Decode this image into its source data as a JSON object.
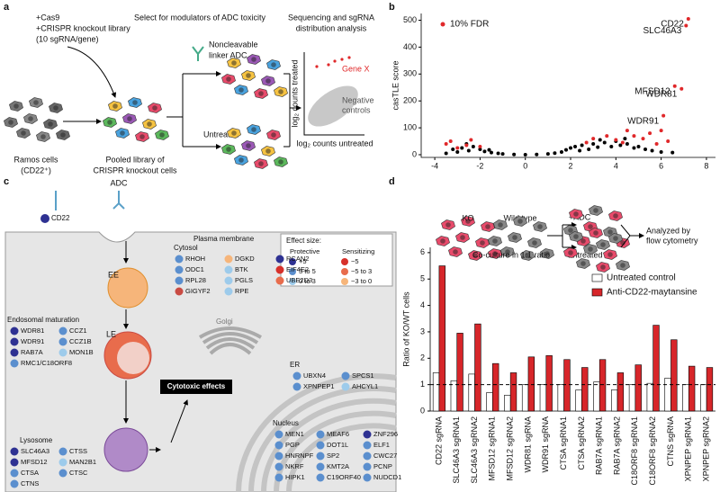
{
  "panel_a": {
    "letter": "a",
    "cas9": "+Cas9",
    "library": "+CRISPR knockout library",
    "sgrna_per_gene": "(10 sgRNA/gene)",
    "select_title": "Select for modulators of ADC toxicity",
    "seq_title": [
      "Sequencing and sgRNA",
      "distribution analysis"
    ],
    "adc_label": [
      "Noncleavable",
      "linker ADC"
    ],
    "untreated": "Untreated",
    "ramos": [
      "Ramos cells",
      "(CD22⁺)"
    ],
    "pooled": [
      "Pooled library of",
      "CRISPR knockout cells"
    ],
    "gene_x": "Gene X",
    "negative": [
      "Negative",
      "controls"
    ],
    "y_label": "log₂ counts treated",
    "x_label": "log₂ counts untreated"
  },
  "chart_data": [
    {
      "panel_letter": "b",
      "type": "scatter",
      "y_label": "casTLE score",
      "xlim": [
        -4.6,
        8.4
      ],
      "ylim": [
        -10,
        525
      ],
      "xticks": [
        -4,
        -2,
        0,
        2,
        4,
        6,
        8
      ],
      "yticks": [
        0,
        100,
        200,
        300,
        400,
        500
      ],
      "legend": "top-left",
      "series": [
        {
          "color": "#000000",
          "x": [
            -3.5,
            -3,
            -2.8,
            -2.5,
            -2.3,
            -2,
            -1.8,
            -1.5,
            -1.2,
            -1,
            -0.5,
            0,
            0.5,
            1,
            1.3,
            1.6,
            1.8,
            2,
            2.2,
            2.5,
            2.8,
            3,
            3.2,
            3.5,
            3.8,
            4,
            4.2,
            4.5,
            4.8,
            5,
            5.3,
            5.6,
            6,
            6.5,
            -2.6,
            -3.2,
            3.3,
            4.4,
            2.4,
            -1.6
          ],
          "y": [
            5,
            10,
            25,
            15,
            30,
            20,
            12,
            8,
            5,
            3,
            1,
            0,
            1,
            3,
            6,
            10,
            18,
            25,
            30,
            35,
            20,
            40,
            28,
            45,
            30,
            50,
            35,
            40,
            25,
            30,
            20,
            15,
            10,
            8,
            40,
            20,
            55,
            60,
            15,
            18
          ]
        },
        {
          "name": "10% FDR",
          "color": "#e0282a",
          "x": [
            7.2,
            7.1,
            6.6,
            6.9,
            6.1,
            -3.3,
            -3.5,
            -2.6,
            -2.4,
            -2,
            3,
            3.6,
            4,
            4.5,
            4.8,
            5.2,
            5.5,
            6,
            6.3,
            4.3,
            5.8,
            2.7,
            -3
          ],
          "y": [
            505,
            480,
            255,
            245,
            145,
            50,
            40,
            35,
            55,
            30,
            60,
            70,
            55,
            90,
            70,
            60,
            80,
            90,
            50,
            45,
            40,
            45,
            25
          ],
          "point_labels": [
            "CD22",
            "SLC46A3",
            "MFSD12",
            "WDR81",
            "WDR91",
            null,
            null,
            null,
            null,
            null,
            null,
            null,
            null,
            null,
            null,
            null,
            null,
            null,
            null,
            null,
            null,
            null,
            null
          ]
        }
      ]
    },
    {
      "panel_letter": "d",
      "type": "bar",
      "y_label": "Ratio of KO/WT cells",
      "categories": [
        "CD22 sgRNA",
        "SLC46A3 sgRNA1",
        "SLC46A3 sgRNA2",
        "MFSD12 sgRNA1",
        "MFSD12 sgRNA2",
        "WDR81 sgRNA",
        "WDR91 sgRNA",
        "CTSA sgRNA1",
        "CTSA sgRNA2",
        "RAB7A sgRNA1",
        "RAB7A sgRNA2",
        "C18ORF8 sgRNA1",
        "C18ORF8 sgRNA2",
        "CTNS sgRNA",
        "XPNPEP sgRNA1",
        "XPNPEP sgRNA2"
      ],
      "series": [
        {
          "name": "Untreated control",
          "color": "#ffffff",
          "values": [
            1.45,
            1.15,
            1.4,
            0.7,
            0.6,
            1.0,
            1.0,
            1.0,
            0.8,
            1.1,
            0.8,
            1.0,
            1.05,
            1.25,
            1.0,
            1.0
          ]
        },
        {
          "name": "Anti-CD22-maytansine",
          "color": "#d7262a",
          "values": [
            5.5,
            2.95,
            3.3,
            1.8,
            1.45,
            2.05,
            2.1,
            1.95,
            1.65,
            1.95,
            1.45,
            1.75,
            3.25,
            2.7,
            1.7,
            1.65
          ]
        }
      ],
      "ylim": [
        0,
        6.2
      ],
      "yticks": [
        0,
        1,
        2,
        3,
        4,
        5,
        6
      ],
      "reference_line": 1,
      "legend": "top-right"
    }
  ],
  "panel_d_inset": {
    "ko": "KO",
    "wild_type": "Wild type",
    "adc": "+ADC",
    "untreated": "Untreated",
    "coculture": "Co-culture in 1:1 ratio",
    "analyzed": [
      "Analyzed by",
      "flow cytometry"
    ]
  },
  "panel_c": {
    "letter": "c",
    "adc": "ADC",
    "cd22": "CD22",
    "plasma_membrane": "Plasma membrane",
    "ee": "EE",
    "le": "LE",
    "golgi": "Golgi",
    "cytotoxic": "Cytotoxic effects",
    "legend": {
      "title": "Effect size:",
      "protective": {
        "title": "Protective",
        "items": [
          {
            "label": "+5",
            "color": "#2e3192"
          },
          {
            "label": "3 to 5",
            "color": "#5b8fce"
          },
          {
            "label": "0 to 3",
            "color": "#9dcbeb"
          }
        ]
      },
      "sensitizing": {
        "title": "Sensitizing",
        "items": [
          {
            "label": "−5",
            "color": "#d7302a"
          },
          {
            "label": "−5 to 3",
            "color": "#e86c4c"
          },
          {
            "label": "−3 to 0",
            "color": "#f6b57a"
          }
        ]
      }
    },
    "groups": [
      {
        "title": "Cytosol",
        "columns": [
          [
            {
              "name": "RHOH",
              "color": "#5b8fce"
            },
            {
              "name": "ODC1",
              "color": "#5b8fce"
            },
            {
              "name": "RPL28",
              "color": "#5b8fce"
            },
            {
              "name": "GIGYF2",
              "color": "#c94b43"
            }
          ],
          [
            {
              "name": "DGKD",
              "color": "#f6b57a"
            },
            {
              "name": "BTK",
              "color": "#9dcbeb"
            },
            {
              "name": "PGLS",
              "color": "#9dcbeb"
            },
            {
              "name": "RPE",
              "color": "#9dcbeb"
            }
          ],
          [
            {
              "name": "RCAN2",
              "color": "#2e3192"
            },
            {
              "name": "EIF4E2",
              "color": "#d7302a"
            },
            {
              "name": "UBE2D3",
              "color": "#e86c4c"
            }
          ]
        ]
      },
      {
        "title": "Endosomal maturation",
        "columns": [
          [
            {
              "name": "WDR81",
              "color": "#2e3192"
            },
            {
              "name": "WDR91",
              "color": "#2e3192"
            },
            {
              "name": "RAB7A",
              "color": "#2e3192"
            },
            {
              "name": "RMC1/C18ORF8",
              "color": "#5b8fce"
            }
          ],
          [
            {
              "name": "CCZ1",
              "color": "#5b8fce"
            },
            {
              "name": "CCZ1B",
              "color": "#5b8fce"
            },
            {
              "name": "MON1B",
              "color": "#9dcbeb"
            }
          ]
        ]
      },
      {
        "title": "ER",
        "columns": [
          [
            {
              "name": "UBXN4",
              "color": "#5b8fce"
            },
            {
              "name": "XPNPEP1",
              "color": "#5b8fce"
            }
          ],
          [
            {
              "name": "SPCS1",
              "color": "#5b8fce"
            },
            {
              "name": "AHCYL1",
              "color": "#9dcbeb"
            }
          ]
        ]
      },
      {
        "title": "Nucleus",
        "columns": [
          [
            {
              "name": "MEN1",
              "color": "#5b8fce"
            },
            {
              "name": "PGP",
              "color": "#5b8fce"
            },
            {
              "name": "HNRNPF",
              "color": "#5b8fce"
            },
            {
              "name": "NKRF",
              "color": "#5b8fce"
            },
            {
              "name": "HIPK1",
              "color": "#5b8fce"
            }
          ],
          [
            {
              "name": "MEAF6",
              "color": "#5b8fce"
            },
            {
              "name": "DOT1L",
              "color": "#5b8fce"
            },
            {
              "name": "SP2",
              "color": "#5b8fce"
            },
            {
              "name": "KMT2A",
              "color": "#5b8fce"
            },
            {
              "name": "C19ORF40",
              "color": "#5b8fce"
            }
          ],
          [
            {
              "name": "ZNF296",
              "color": "#2e3192"
            },
            {
              "name": "ELF1",
              "color": "#5b8fce"
            },
            {
              "name": "CWC27",
              "color": "#5b8fce"
            },
            {
              "name": "PCNP",
              "color": "#5b8fce"
            },
            {
              "name": "NUDCD1",
              "color": "#5b8fce"
            }
          ]
        ]
      },
      {
        "title": "Lysosome",
        "columns": [
          [
            {
              "name": "SLC46A3",
              "color": "#2e3192"
            },
            {
              "name": "MFSD12",
              "color": "#2e3192"
            },
            {
              "name": "CTSA",
              "color": "#5b8fce"
            },
            {
              "name": "CTNS",
              "color": "#5b8fce"
            }
          ],
          [
            {
              "name": "CTSS",
              "color": "#5b8fce"
            },
            {
              "name": "MAN2B1",
              "color": "#9dcbeb"
            },
            {
              "name": "CTSC",
              "color": "#5b8fce"
            }
          ]
        ]
      }
    ]
  }
}
